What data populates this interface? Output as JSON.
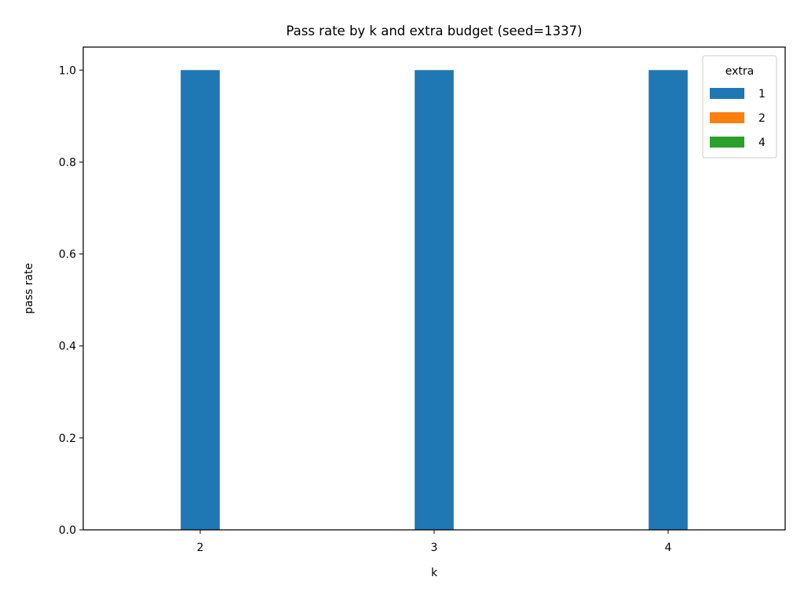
{
  "chart_data": {
    "type": "bar",
    "title": "Pass rate by k and extra budget (seed=1337)",
    "xlabel": "k",
    "ylabel": "pass rate",
    "categories": [
      "2",
      "3",
      "4"
    ],
    "series": [
      {
        "name": "1",
        "values": [
          1.0,
          1.0,
          1.0
        ],
        "color": "#1f77b4"
      },
      {
        "name": "2",
        "values": [
          0,
          0,
          0
        ],
        "color": "#ff7f0e"
      },
      {
        "name": "4",
        "values": [
          0,
          0,
          0
        ],
        "color": "#2ca02c"
      }
    ],
    "ylim": [
      0,
      1.05
    ],
    "yticks": [
      "0.0",
      "0.2",
      "0.4",
      "0.6",
      "0.8",
      "1.0"
    ],
    "grid": false,
    "legend": {
      "title": "extra",
      "placement": "top-right"
    }
  }
}
